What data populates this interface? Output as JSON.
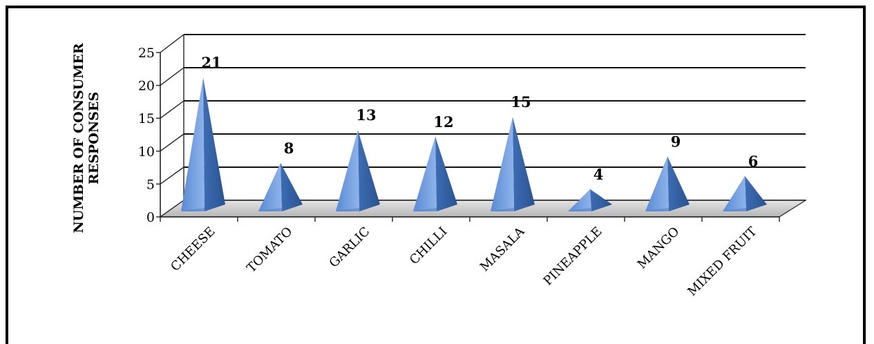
{
  "chart_data": {
    "type": "bar",
    "style": "3d-pyramid",
    "categories": [
      "CHEESE",
      "TOMATO",
      "GARLIC",
      "CHILLI",
      "MASALA",
      "PINEAPPLE",
      "MANGO",
      "MIXED FRUIT"
    ],
    "values": [
      21,
      8,
      13,
      12,
      15,
      4,
      9,
      6
    ],
    "data_labels": [
      "21",
      "8",
      "13",
      "12",
      "15",
      "4",
      "9",
      "6"
    ],
    "ylabel_lines": [
      "NUMBER OF CONSUMER",
      "RESPONSES"
    ],
    "y_ticks": [
      "0",
      "5",
      "10",
      "15",
      "20",
      "25"
    ],
    "ylim": [
      0,
      25
    ],
    "grid": true,
    "legend": "none",
    "colors": {
      "pyramid_light": "#6f9be0",
      "pyramid_dark": "#2f5d9e",
      "pyramid_mid": "#4a7bc4",
      "floor": "#cfcfcf"
    }
  }
}
